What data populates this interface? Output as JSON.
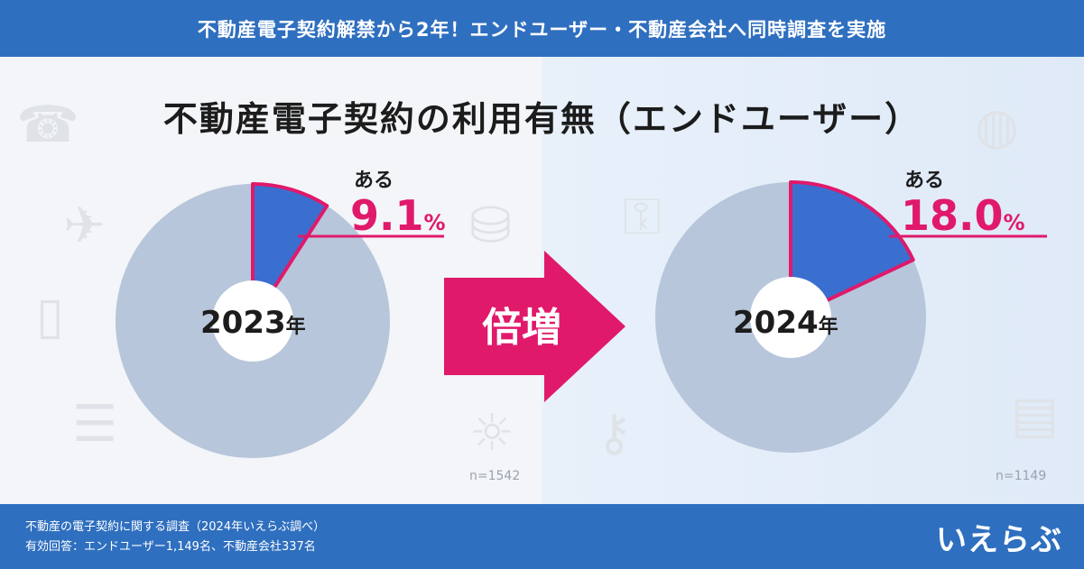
{
  "banner": {
    "text": "不動産電子契約解禁から2年！エンドユーザー・不動産会社へ同時調査を実施"
  },
  "main_title": "不動産電子契約の利用有無（エンドユーザー）",
  "arrow_label": "倍増",
  "colors": {
    "banner": "#2f6fbf",
    "highlight_slice": "#3a6fd0",
    "rest_slice": "#b7c6da",
    "accent": "#e0196b"
  },
  "chart_data": [
    {
      "type": "pie",
      "center_label": "2023",
      "center_unit": "年",
      "slices": [
        {
          "label": "ある",
          "value": 9.1,
          "value_text": "9.1",
          "unit": "%"
        },
        {
          "label": "",
          "value": 90.9
        }
      ],
      "n": "n=1542"
    },
    {
      "type": "pie",
      "center_label": "2024",
      "center_unit": "年",
      "slices": [
        {
          "label": "ある",
          "value": 18.0,
          "value_text": "18.0",
          "unit": "%"
        },
        {
          "label": "",
          "value": 82.0
        }
      ],
      "n": "n=1149"
    }
  ],
  "footer": {
    "line1": "不動産の電子契約に関する調査（2024年いえらぶ調べ）",
    "line2": "有効回答：エンドユーザー1,149名、不動産会社337名",
    "logo": "いえらぶ"
  }
}
